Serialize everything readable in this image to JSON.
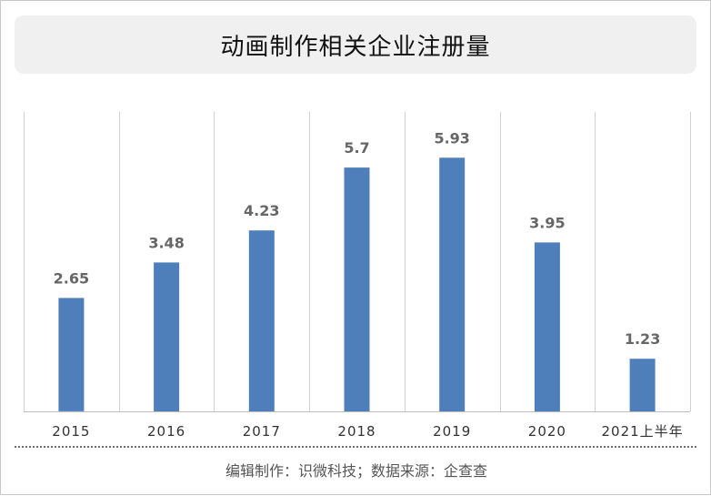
{
  "title": "动画制作相关企业注册量",
  "footer": "编辑制作：识微科技；数据来源：企查查",
  "colors": {
    "bar": "#4e7fbb",
    "label": "#666666",
    "grid": "#d0d0d0",
    "axis": "#bfbfbf"
  },
  "chart_data": {
    "type": "bar",
    "categories": [
      "2015",
      "2016",
      "2017",
      "2018",
      "2019",
      "2020",
      "2021上半年"
    ],
    "values": [
      2.65,
      3.48,
      4.23,
      5.7,
      5.93,
      3.95,
      1.23
    ],
    "value_labels": [
      "2.65",
      "3.48",
      "4.23",
      "5.7",
      "5.93",
      "3.95",
      "1.23"
    ],
    "title": "动画制作相关企业注册量",
    "xlabel": "",
    "ylabel": "",
    "ylim": [
      0,
      7
    ],
    "grid": "vertical separators between categories",
    "legend": "none"
  }
}
